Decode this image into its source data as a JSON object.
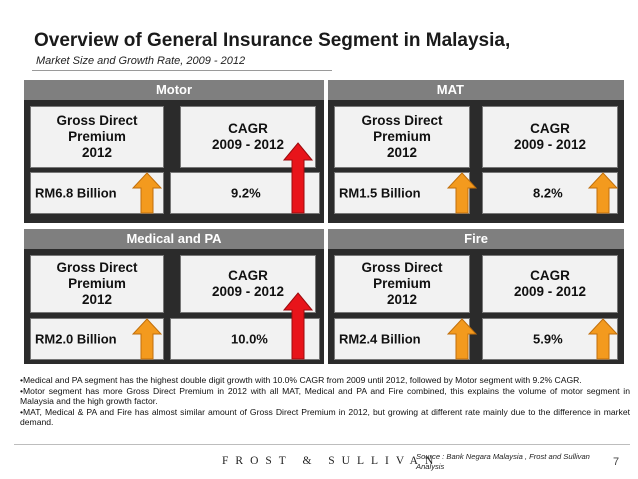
{
  "title": "Overview of General Insurance Segment in Malaysia,",
  "subtitle": "Market Size and Growth Rate, 2009 - 2012",
  "segments": {
    "motor": {
      "name": "Motor",
      "gdp_label": "Gross Direct Premium 2012",
      "gdp_line1": "Gross Direct",
      "gdp_line2": "Premium",
      "gdp_line3": "2012",
      "gdp_value": "RM6.8 Billion",
      "cagr_line1": "CAGR",
      "cagr_line2": "2009 - 2012",
      "cagr_value": "9.2%"
    },
    "mat": {
      "name": "MAT",
      "gdp_line1": "Gross Direct",
      "gdp_line2": "Premium",
      "gdp_line3": "2012",
      "gdp_value": "RM1.5 Billion",
      "cagr_line1": "CAGR",
      "cagr_line2": "2009 - 2012",
      "cagr_value": "8.2%"
    },
    "medical": {
      "name": "Medical and PA",
      "gdp_line1": "Gross Direct",
      "gdp_line2": "Premium",
      "gdp_line3": "2012",
      "gdp_value": "RM2.0 Billion",
      "cagr_line1": "CAGR",
      "cagr_line2": "2009 - 2012",
      "cagr_value": "10.0%"
    },
    "fire": {
      "name": "Fire",
      "gdp_line1": "Gross Direct",
      "gdp_line2": "Premium",
      "gdp_line3": "2012",
      "gdp_value": "RM2.4 Billion",
      "cagr_line1": "CAGR",
      "cagr_line2": "2009 - 2012",
      "cagr_value": "5.9%"
    }
  },
  "notes": [
    "•Medical and PA segment has the highest double digit growth with 10.0% CAGR from 2009 until 2012, followed by Motor segment with 9.2% CAGR.",
    "•Motor segment has more Gross Direct Premium in 2012 with all MAT, Medical and PA and Fire combined, this explains the volume of motor segment in Malaysia and the high growth factor.",
    "•MAT, Medical & PA  and Fire has almost similar amount of Gross Direct Premium in 2012, but growing at different rate mainly due to the difference in market demand."
  ],
  "footer": {
    "logo": "FROST & SULLIVAN",
    "source": "Source : Bank Negara Malaysia , Frost and Sullivan Analysis",
    "page": "7"
  },
  "colors": {
    "header_bg": "#7f7f7f",
    "panel_bg": "#2b2b2b",
    "arrow_orange": "#f39a1e",
    "arrow_red": "#e8141a"
  },
  "icons": {
    "growth": "up-arrow-icon",
    "highlight": "red-up-arrow-icon"
  }
}
